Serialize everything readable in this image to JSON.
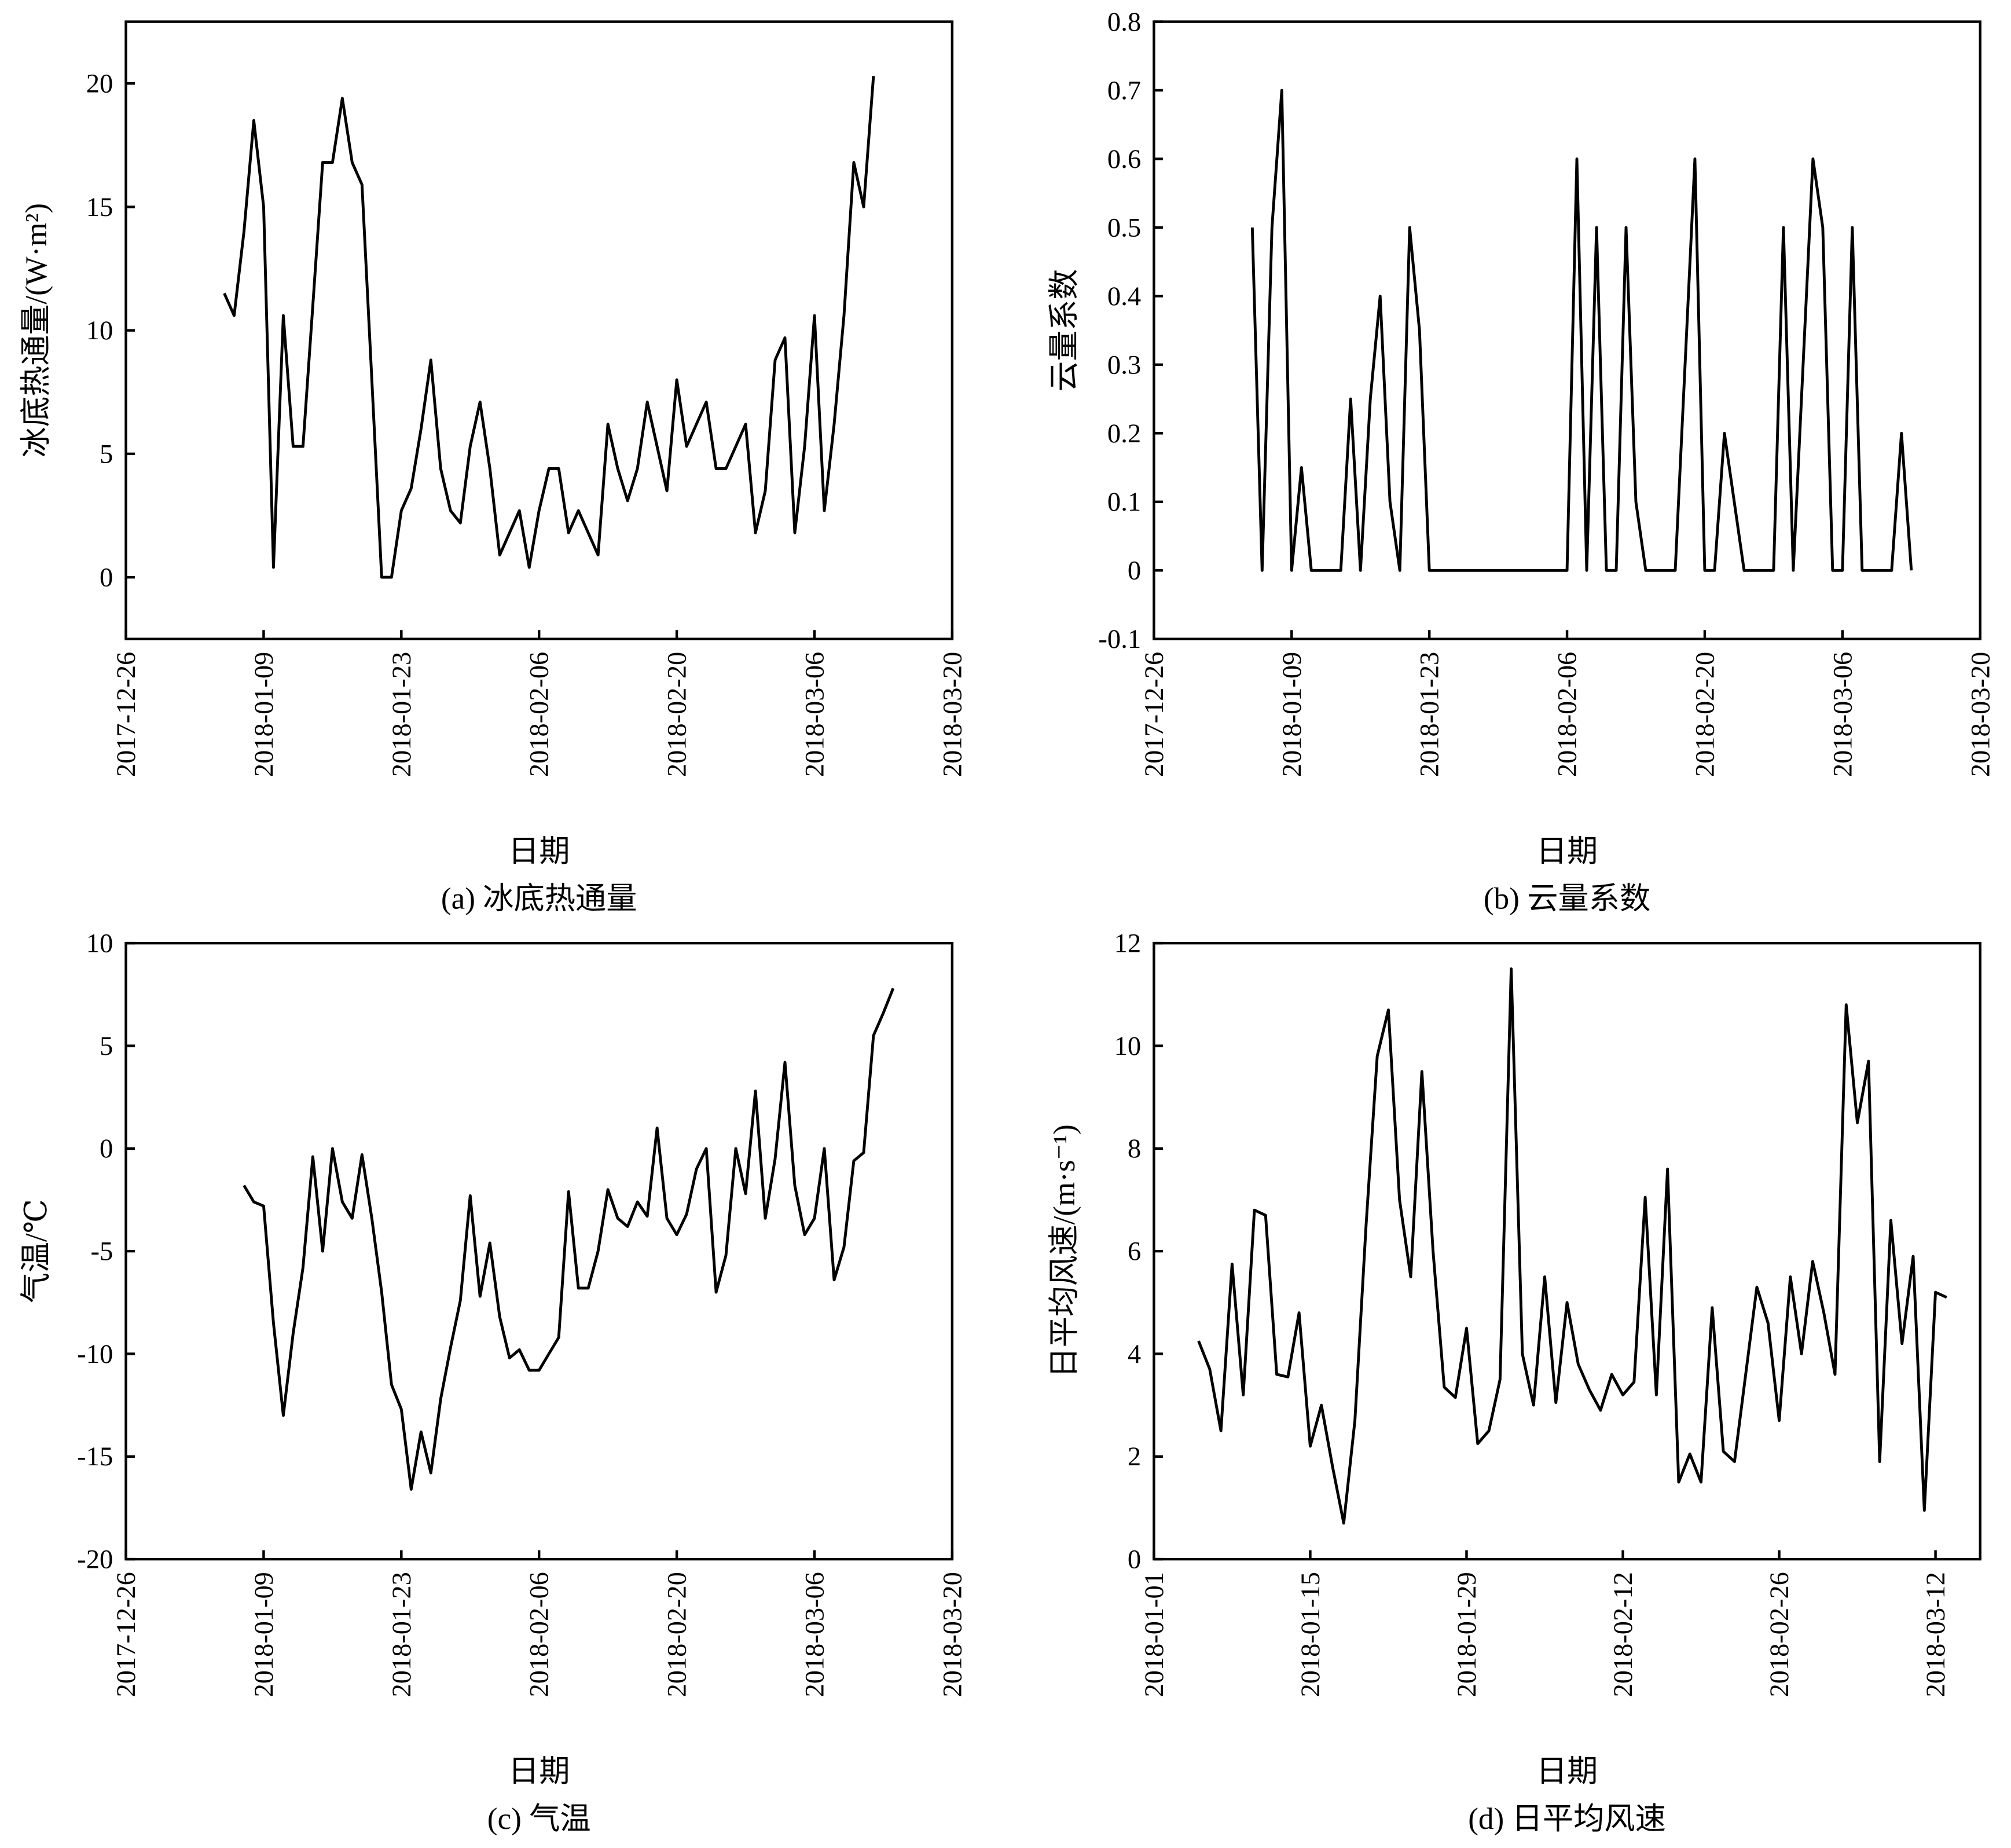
{
  "chart_data": [
    {
      "type": "line",
      "caption": "(a) 冰底热通量",
      "x_label": "日期",
      "y_label": "冰底热通量/(W·m²)",
      "color": "#000000",
      "xlim": [
        "2017-12-26",
        "2018-03-20"
      ],
      "xticks": [
        "2017-12-26",
        "2018-01-09",
        "2018-01-23",
        "2018-02-06",
        "2018-02-20",
        "2018-03-06",
        "2018-03-20"
      ],
      "ylim": [
        -2.5,
        22.5
      ],
      "yticks": [
        0,
        5,
        10,
        15,
        20
      ],
      "x": [
        "2018-01-05",
        "2018-01-06",
        "2018-01-07",
        "2018-01-08",
        "2018-01-09",
        "2018-01-10",
        "2018-01-11",
        "2018-01-12",
        "2018-01-13",
        "2018-01-14",
        "2018-01-15",
        "2018-01-16",
        "2018-01-17",
        "2018-01-18",
        "2018-01-19",
        "2018-01-20",
        "2018-01-21",
        "2018-01-22",
        "2018-01-23",
        "2018-01-24",
        "2018-01-25",
        "2018-01-26",
        "2018-01-27",
        "2018-01-28",
        "2018-01-29",
        "2018-01-30",
        "2018-01-31",
        "2018-02-01",
        "2018-02-02",
        "2018-02-03",
        "2018-02-04",
        "2018-02-05",
        "2018-02-06",
        "2018-02-07",
        "2018-02-08",
        "2018-02-09",
        "2018-02-10",
        "2018-02-11",
        "2018-02-12",
        "2018-02-13",
        "2018-02-14",
        "2018-02-15",
        "2018-02-16",
        "2018-02-17",
        "2018-02-18",
        "2018-02-19",
        "2018-02-20",
        "2018-02-21",
        "2018-02-22",
        "2018-02-23",
        "2018-02-24",
        "2018-02-25",
        "2018-02-26",
        "2018-02-27",
        "2018-02-28",
        "2018-03-01",
        "2018-03-02",
        "2018-03-03",
        "2018-03-04",
        "2018-03-05",
        "2018-03-06",
        "2018-03-07",
        "2018-03-08",
        "2018-03-09",
        "2018-03-10",
        "2018-03-11",
        "2018-03-12"
      ],
      "values": [
        11.5,
        10.6,
        14,
        18.5,
        15,
        0.4,
        10.6,
        5.3,
        5.3,
        11,
        16.8,
        16.8,
        19.4,
        16.8,
        15.9,
        8,
        0,
        0,
        2.7,
        3.6,
        6,
        8.8,
        4.4,
        2.7,
        2.2,
        5.3,
        7.1,
        4.4,
        0.9,
        1.8,
        2.7,
        0.4,
        2.7,
        4.4,
        4.4,
        1.8,
        2.7,
        1.8,
        0.9,
        6.2,
        4.4,
        3.1,
        4.4,
        7.1,
        5.3,
        3.5,
        8,
        5.3,
        6.2,
        7.1,
        4.4,
        4.4,
        5.3,
        6.2,
        1.8,
        3.5,
        8.8,
        9.7,
        1.8,
        5.3,
        10.6,
        2.7,
        6.2,
        10.6,
        16.8,
        15,
        20.3
      ]
    },
    {
      "type": "line",
      "caption": "(b) 云量系数",
      "x_label": "日期",
      "y_label": "云量系数",
      "color": "#000000",
      "xlim": [
        "2017-12-26",
        "2018-03-20"
      ],
      "xticks": [
        "2017-12-26",
        "2018-01-09",
        "2018-01-23",
        "2018-02-06",
        "2018-02-20",
        "2018-03-06",
        "2018-03-20"
      ],
      "ylim": [
        -0.1,
        0.8
      ],
      "yticks": [
        -0.1,
        0,
        0.1,
        0.2,
        0.3,
        0.4,
        0.5,
        0.6,
        0.7,
        0.8
      ],
      "x": [
        "2018-01-05",
        "2018-01-06",
        "2018-01-07",
        "2018-01-08",
        "2018-01-09",
        "2018-01-10",
        "2018-01-11",
        "2018-01-12",
        "2018-01-13",
        "2018-01-14",
        "2018-01-15",
        "2018-01-16",
        "2018-01-17",
        "2018-01-18",
        "2018-01-19",
        "2018-01-20",
        "2018-01-21",
        "2018-01-22",
        "2018-01-23",
        "2018-01-24",
        "2018-01-25",
        "2018-01-26",
        "2018-01-27",
        "2018-01-28",
        "2018-01-29",
        "2018-01-30",
        "2018-01-31",
        "2018-02-01",
        "2018-02-02",
        "2018-02-03",
        "2018-02-04",
        "2018-02-05",
        "2018-02-06",
        "2018-02-07",
        "2018-02-08",
        "2018-02-09",
        "2018-02-10",
        "2018-02-11",
        "2018-02-12",
        "2018-02-13",
        "2018-02-14",
        "2018-02-15",
        "2018-02-16",
        "2018-02-17",
        "2018-02-18",
        "2018-02-19",
        "2018-02-20",
        "2018-02-21",
        "2018-02-22",
        "2018-02-23",
        "2018-02-24",
        "2018-02-25",
        "2018-02-26",
        "2018-02-27",
        "2018-02-28",
        "2018-03-01",
        "2018-03-02",
        "2018-03-03",
        "2018-03-04",
        "2018-03-05",
        "2018-03-06",
        "2018-03-07",
        "2018-03-08",
        "2018-03-09",
        "2018-03-10",
        "2018-03-11",
        "2018-03-12",
        "2018-03-13"
      ],
      "values": [
        0.5,
        0,
        0.5,
        0.7,
        0,
        0.15,
        0,
        0,
        0,
        0,
        0.25,
        0,
        0.25,
        0.4,
        0.1,
        0,
        0.5,
        0.35,
        0,
        0,
        0,
        0,
        0,
        0,
        0,
        0,
        0,
        0,
        0,
        0,
        0,
        0,
        0,
        0.6,
        0,
        0.5,
        0,
        0,
        0.5,
        0.1,
        0,
        0,
        0,
        0,
        0.3,
        0.6,
        0,
        0,
        0.2,
        0.1,
        0,
        0,
        0,
        0,
        0.5,
        0,
        0.3,
        0.6,
        0.5,
        0,
        0,
        0.5,
        0,
        0,
        0,
        0,
        0.2,
        0
      ]
    },
    {
      "type": "line",
      "caption": "(c) 气温",
      "x_label": "日期",
      "y_label": "气温/℃",
      "color": "#000000",
      "xlim": [
        "2017-12-26",
        "2018-03-20"
      ],
      "xticks": [
        "2017-12-26",
        "2018-01-09",
        "2018-01-23",
        "2018-02-06",
        "2018-02-20",
        "2018-03-06",
        "2018-03-20"
      ],
      "ylim": [
        -20,
        10
      ],
      "yticks": [
        -20,
        -15,
        -10,
        -5,
        0,
        5,
        10
      ],
      "x": [
        "2018-01-07",
        "2018-01-08",
        "2018-01-09",
        "2018-01-10",
        "2018-01-11",
        "2018-01-12",
        "2018-01-13",
        "2018-01-14",
        "2018-01-15",
        "2018-01-16",
        "2018-01-17",
        "2018-01-18",
        "2018-01-19",
        "2018-01-20",
        "2018-01-21",
        "2018-01-22",
        "2018-01-23",
        "2018-01-24",
        "2018-01-25",
        "2018-01-26",
        "2018-01-27",
        "2018-01-28",
        "2018-01-29",
        "2018-01-30",
        "2018-01-31",
        "2018-02-01",
        "2018-02-02",
        "2018-02-03",
        "2018-02-04",
        "2018-02-05",
        "2018-02-06",
        "2018-02-07",
        "2018-02-08",
        "2018-02-09",
        "2018-02-10",
        "2018-02-11",
        "2018-02-12",
        "2018-02-13",
        "2018-02-14",
        "2018-02-15",
        "2018-02-16",
        "2018-02-17",
        "2018-02-18",
        "2018-02-19",
        "2018-02-20",
        "2018-02-21",
        "2018-02-22",
        "2018-02-23",
        "2018-02-24",
        "2018-02-25",
        "2018-02-26",
        "2018-02-27",
        "2018-02-28",
        "2018-03-01",
        "2018-03-02",
        "2018-03-03",
        "2018-03-04",
        "2018-03-05",
        "2018-03-06",
        "2018-03-07",
        "2018-03-08",
        "2018-03-09",
        "2018-03-10",
        "2018-03-11",
        "2018-03-12",
        "2018-03-13",
        "2018-03-14"
      ],
      "values": [
        -1.8,
        -2.6,
        -2.8,
        -8.5,
        -13,
        -9,
        -5.8,
        -0.4,
        -5,
        0,
        -2.6,
        -3.4,
        -0.3,
        -3.4,
        -7,
        -11.5,
        -12.7,
        -16.6,
        -13.8,
        -15.8,
        -12.2,
        -9.7,
        -7.4,
        -2.3,
        -7.2,
        -4.6,
        -8.2,
        -10.2,
        -9.8,
        -10.8,
        -10.8,
        -10,
        -9.2,
        -2.1,
        -6.8,
        -6.8,
        -5,
        -2,
        -3.4,
        -3.8,
        -2.6,
        -3.3,
        1,
        -3.4,
        -4.2,
        -3.2,
        -1,
        0,
        -7,
        -5.2,
        0,
        -2.2,
        2.8,
        -3.4,
        -0.5,
        4.2,
        -1.8,
        -4.2,
        -3.4,
        0,
        -6.4,
        -4.8,
        -0.6,
        -0.2,
        5.5,
        6.6,
        7.8
      ]
    },
    {
      "type": "line",
      "caption": "(d) 日平均风速",
      "x_label": "日期",
      "y_label": "日平均风速/(m·s⁻¹)",
      "color": "#000000",
      "xlim": [
        "2018-01-01",
        "2018-03-16"
      ],
      "xticks": [
        "2018-01-01",
        "2018-01-15",
        "2018-01-29",
        "2018-02-12",
        "2018-02-26",
        "2018-03-12"
      ],
      "ylim": [
        0,
        12
      ],
      "yticks": [
        0,
        2,
        4,
        6,
        8,
        10,
        12
      ],
      "x": [
        "2018-01-05",
        "2018-01-06",
        "2018-01-07",
        "2018-01-08",
        "2018-01-09",
        "2018-01-10",
        "2018-01-11",
        "2018-01-12",
        "2018-01-13",
        "2018-01-14",
        "2018-01-15",
        "2018-01-16",
        "2018-01-17",
        "2018-01-18",
        "2018-01-19",
        "2018-01-20",
        "2018-01-21",
        "2018-01-22",
        "2018-01-23",
        "2018-01-24",
        "2018-01-25",
        "2018-01-26",
        "2018-01-27",
        "2018-01-28",
        "2018-01-29",
        "2018-01-30",
        "2018-01-31",
        "2018-02-01",
        "2018-02-02",
        "2018-02-03",
        "2018-02-04",
        "2018-02-05",
        "2018-02-06",
        "2018-02-07",
        "2018-02-08",
        "2018-02-09",
        "2018-02-10",
        "2018-02-11",
        "2018-02-12",
        "2018-02-13",
        "2018-02-14",
        "2018-02-15",
        "2018-02-16",
        "2018-02-17",
        "2018-02-18",
        "2018-02-19",
        "2018-02-20",
        "2018-02-21",
        "2018-02-22",
        "2018-02-23",
        "2018-02-24",
        "2018-02-25",
        "2018-02-26",
        "2018-02-27",
        "2018-02-28",
        "2018-03-01",
        "2018-03-02",
        "2018-03-03",
        "2018-03-04",
        "2018-03-05",
        "2018-03-06",
        "2018-03-07",
        "2018-03-08",
        "2018-03-09",
        "2018-03-10",
        "2018-03-11",
        "2018-03-12",
        "2018-03-13"
      ],
      "values": [
        4.25,
        3.7,
        2.5,
        5.75,
        3.2,
        6.8,
        6.7,
        3.6,
        3.55,
        4.8,
        2.2,
        3,
        1.8,
        0.7,
        2.7,
        6.5,
        9.8,
        10.7,
        7,
        5.5,
        9.5,
        6,
        3.35,
        3.15,
        4.5,
        2.25,
        2.5,
        3.5,
        11.5,
        4,
        3,
        5.5,
        3.05,
        5,
        3.8,
        3.3,
        2.9,
        3.6,
        3.2,
        3.45,
        7.05,
        3.2,
        7.6,
        1.5,
        2.05,
        1.5,
        4.9,
        2.1,
        1.9,
        3.6,
        5.3,
        4.6,
        2.7,
        5.5,
        4,
        5.8,
        4.8,
        3.6,
        10.8,
        8.5,
        9.7,
        1.9,
        6.6,
        4.2,
        5.9,
        0.95,
        5.2,
        5.1
      ]
    }
  ]
}
